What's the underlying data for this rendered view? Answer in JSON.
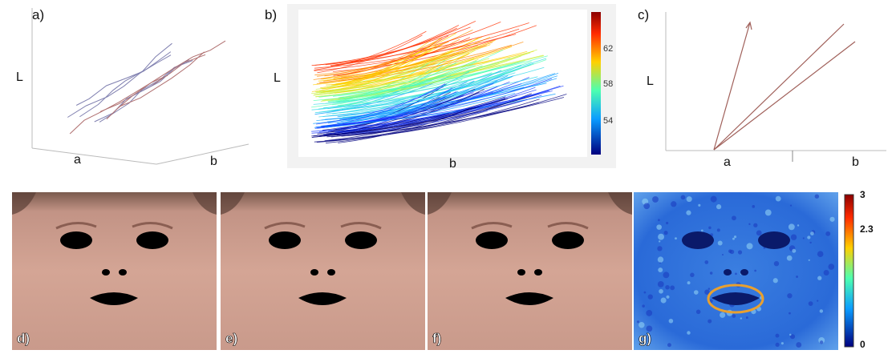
{
  "top": {
    "a": {
      "label": "a)",
      "y_axis": "L",
      "x_axis": "a",
      "depth_axis": "b"
    },
    "b": {
      "label": "b)",
      "y_axis": "L",
      "x_axis": "b",
      "colorbar_labels": [
        "62",
        "58",
        "54"
      ]
    },
    "c": {
      "label": "c)",
      "y_axis": "L",
      "x_axis": "a",
      "x_axis_right": "b"
    }
  },
  "bottom": {
    "panel_labels": [
      "d)",
      "e)",
      "f)",
      "g)"
    ],
    "colorbar_labels": [
      "3",
      "2.3",
      "0"
    ]
  }
}
